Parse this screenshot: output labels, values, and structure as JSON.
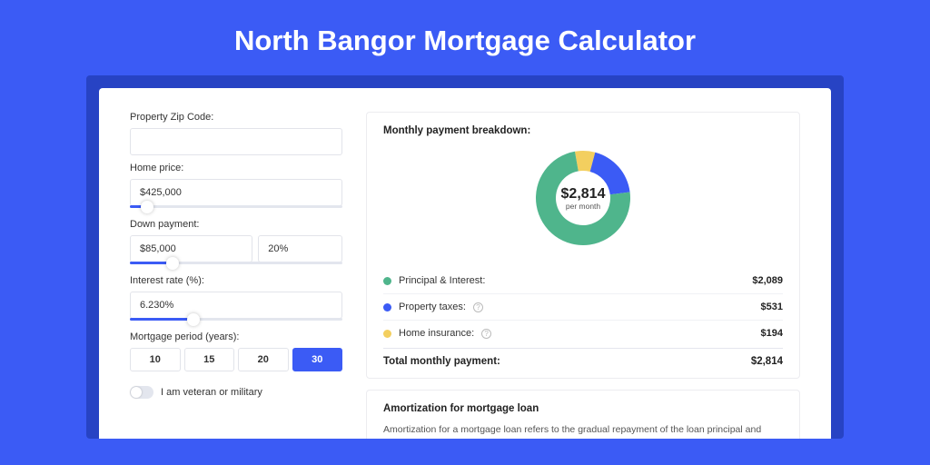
{
  "page": {
    "title": "North Bangor Mortgage Calculator",
    "bg_color": "#3b5bf5",
    "outer_card_color": "#2743c4"
  },
  "form": {
    "zip": {
      "label": "Property Zip Code:",
      "value": ""
    },
    "price": {
      "label": "Home price:",
      "value": "$425,000",
      "slider_pct": 8
    },
    "down": {
      "label": "Down payment:",
      "amount": "$85,000",
      "percent": "20%",
      "slider_pct": 20
    },
    "rate": {
      "label": "Interest rate (%):",
      "value": "6.230%",
      "slider_pct": 30
    },
    "period": {
      "label": "Mortgage period (years):",
      "options": [
        "10",
        "15",
        "20",
        "30"
      ],
      "active_index": 3
    },
    "veteran": {
      "label": "I am veteran or military",
      "checked": false
    }
  },
  "breakdown": {
    "title": "Monthly payment breakdown:",
    "center_value": "$2,814",
    "center_sub": "per month",
    "chart": {
      "type": "donut",
      "size": 116,
      "thickness": 22,
      "background_color": "#ffffff",
      "slices": [
        {
          "label": "Principal & Interest:",
          "value": "$2,089",
          "pct": 74.2,
          "color": "#4fb58c"
        },
        {
          "label": "Property taxes:",
          "value": "$531",
          "pct": 18.9,
          "color": "#3b5bf5",
          "info": true
        },
        {
          "label": "Home insurance:",
          "value": "$194",
          "pct": 6.9,
          "color": "#f3cf5f",
          "info": true
        }
      ]
    },
    "total_label": "Total monthly payment:",
    "total_value": "$2,814"
  },
  "amortization": {
    "title": "Amortization for mortgage loan",
    "text": "Amortization for a mortgage loan refers to the gradual repayment of the loan principal and interest over a specified"
  }
}
